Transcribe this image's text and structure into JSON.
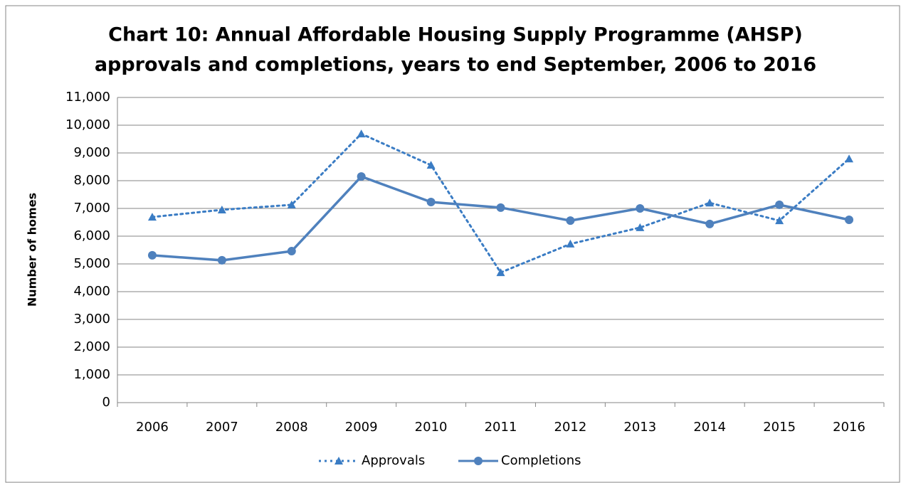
{
  "chart_data": {
    "type": "line",
    "title": [
      "Chart 10: Annual Affordable Housing Supply Programme (AHSP)",
      "approvals and completions, years to end September, 2006 to 2016"
    ],
    "ylabel": "Number of homes",
    "categories": [
      "2006",
      "2007",
      "2008",
      "2009",
      "2010",
      "2011",
      "2012",
      "2013",
      "2014",
      "2015",
      "2016"
    ],
    "series": [
      {
        "name": "Approvals",
        "color": "#3a7cc4",
        "style": "dotted",
        "marker": "triangle",
        "values": [
          6690,
          6950,
          7130,
          9690,
          8560,
          4690,
          5720,
          6310,
          7200,
          6560,
          8790
        ]
      },
      {
        "name": "Completions",
        "color": "#4f81bd",
        "style": "solid",
        "marker": "circle",
        "values": [
          5310,
          5130,
          5460,
          8150,
          7230,
          7030,
          6560,
          7000,
          6440,
          7130,
          6590
        ]
      }
    ],
    "ylim": [
      0,
      11000
    ],
    "yticks": [
      0,
      {
        "value": 1000,
        "label": "1,000"
      },
      {
        "value": 2000,
        "label": "2,000"
      },
      {
        "value": 3000,
        "label": "3,000"
      },
      {
        "value": 4000,
        "label": "4,000"
      },
      {
        "value": 5000,
        "label": "5,000"
      },
      {
        "value": 6000,
        "label": "6,000"
      },
      {
        "value": 7000,
        "label": "7,000"
      },
      {
        "value": 8000,
        "label": "8,000"
      },
      {
        "value": 9000,
        "label": "9,000"
      },
      {
        "value": 10000,
        "label": "10,000"
      },
      {
        "value": 11000,
        "label": "11,000"
      }
    ],
    "grid": true,
    "legend": "bottom"
  }
}
